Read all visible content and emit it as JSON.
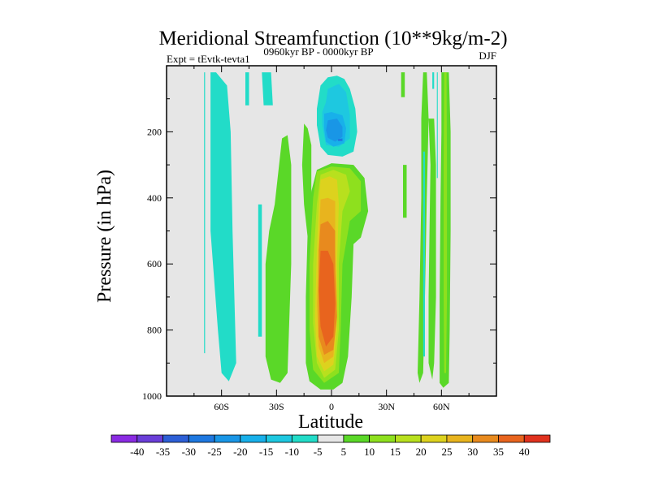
{
  "chart_data": {
    "type": "contour",
    "title": "Meridional Streamfunction (10**9kg/m-2)",
    "subtitle_left": "Expt = tEvtk-tevta1",
    "subtitle_center": "0960kyr BP - 0000kyr BP",
    "subtitle_right": "DJF",
    "xlabel": "Latitude",
    "ylabel": "Pressure (in hPa)",
    "xlim": [
      -90,
      90
    ],
    "ylim": [
      1000,
      0
    ],
    "x_ticks": [
      {
        "value": -60,
        "label": "60S"
      },
      {
        "value": -30,
        "label": "30S"
      },
      {
        "value": 0,
        "label": "0"
      },
      {
        "value": 30,
        "label": "30N"
      },
      {
        "value": 60,
        "label": "60N"
      }
    ],
    "y_ticks": [
      {
        "value": 200,
        "label": "200"
      },
      {
        "value": 400,
        "label": "400"
      },
      {
        "value": 600,
        "label": "600"
      },
      {
        "value": 800,
        "label": "800"
      },
      {
        "value": 1000,
        "label": "1000"
      }
    ],
    "colorbar": {
      "levels": [
        -40,
        -35,
        -30,
        -25,
        -20,
        -15,
        -10,
        -5,
        5,
        10,
        15,
        20,
        25,
        30,
        35,
        40
      ],
      "labels": [
        "-40",
        "-35",
        "-30",
        "-25",
        "-20",
        "-15",
        "-10",
        "-5",
        "5",
        "10",
        "15",
        "20",
        "25",
        "30",
        "35",
        "40"
      ],
      "colors": [
        "#8a2be2",
        "#6a3ed8",
        "#2d5fd6",
        "#1e78e0",
        "#1996e6",
        "#18b0ea",
        "#1ec8e0",
        "#22dcc8",
        "#e6e6e6",
        "#5ad828",
        "#8ee01e",
        "#b8e01e",
        "#ddd21e",
        "#e8b41e",
        "#e88a1e",
        "#e8641e",
        "#e0321e"
      ]
    },
    "regions": [
      {
        "name": "cell-sh-band-1",
        "value": -7.5,
        "polygon": [
          [
            -69.5,
            20
          ],
          [
            -69,
            20
          ],
          [
            -69,
            870
          ],
          [
            -69.5,
            870
          ]
        ]
      },
      {
        "name": "cell-sh-band-2",
        "value": -7.5,
        "polygon": [
          [
            -66,
            20
          ],
          [
            -63,
            20
          ],
          [
            -57,
            60
          ],
          [
            -55,
            200
          ],
          [
            -54,
            500
          ],
          [
            -52,
            900
          ],
          [
            -56,
            955
          ],
          [
            -60,
            930
          ],
          [
            -62,
            800
          ],
          [
            -66,
            500
          ],
          [
            -66,
            200
          ]
        ]
      },
      {
        "name": "cell-sh-band-3",
        "value": -7.5,
        "polygon": [
          [
            -47,
            20
          ],
          [
            -45,
            20
          ],
          [
            -45,
            120
          ],
          [
            -47,
            120
          ]
        ]
      },
      {
        "name": "cell-sh-band-4",
        "value": -7.5,
        "polygon": [
          [
            -38,
            20
          ],
          [
            -33,
            20
          ],
          [
            -32,
            120
          ],
          [
            -37,
            120
          ]
        ]
      },
      {
        "name": "cell-sh-band-5",
        "value": -7.5,
        "polygon": [
          [
            -40,
            420
          ],
          [
            -38,
            420
          ],
          [
            -38,
            820
          ],
          [
            -40,
            820
          ]
        ]
      },
      {
        "name": "cell-sh-band-6",
        "value": 7.5,
        "polygon": [
          [
            -27,
            220
          ],
          [
            -24,
            210
          ],
          [
            -22,
            300
          ],
          [
            -22,
            600
          ],
          [
            -24,
            930
          ],
          [
            -28,
            960
          ],
          [
            -33,
            950
          ],
          [
            -36,
            880
          ],
          [
            -36,
            600
          ],
          [
            -34,
            500
          ],
          [
            -31,
            420
          ]
        ]
      },
      {
        "name": "cell-sh-band-7",
        "value": 7.5,
        "polygon": [
          [
            -15,
            175
          ],
          [
            -13,
            190
          ],
          [
            -11,
            240
          ],
          [
            -11,
            520
          ],
          [
            -13,
            520
          ],
          [
            -15,
            420
          ],
          [
            -16,
            300
          ]
        ]
      },
      {
        "name": "cell-upper-negative",
        "value": -7.5,
        "polygon": [
          [
            -6,
            60
          ],
          [
            -2,
            35
          ],
          [
            3,
            30
          ],
          [
            7,
            40
          ],
          [
            10,
            70
          ],
          [
            13,
            130
          ],
          [
            14,
            200
          ],
          [
            12,
            260
          ],
          [
            6,
            275
          ],
          [
            -2,
            270
          ],
          [
            -6,
            245
          ],
          [
            -8,
            180
          ],
          [
            -8,
            130
          ]
        ]
      },
      {
        "name": "cell-upper-negative-core-1",
        "value": -12.5,
        "polygon": [
          [
            -2,
            70
          ],
          [
            4,
            55
          ],
          [
            8,
            80
          ],
          [
            10,
            150
          ],
          [
            10,
            220
          ],
          [
            4,
            245
          ],
          [
            -3,
            240
          ],
          [
            -5,
            180
          ],
          [
            -5,
            140
          ],
          [
            -3,
            110
          ]
        ]
      },
      {
        "name": "cell-upper-negative-core-2",
        "value": -17.5,
        "polygon": [
          [
            -4,
            145
          ],
          [
            0,
            140
          ],
          [
            6,
            150
          ],
          [
            8,
            190
          ],
          [
            7,
            235
          ],
          [
            1,
            245
          ],
          [
            -3,
            230
          ],
          [
            -4,
            190
          ]
        ]
      },
      {
        "name": "cell-upper-negative-core-3",
        "value": -22.5,
        "polygon": [
          [
            -2,
            165
          ],
          [
            3,
            160
          ],
          [
            6,
            185
          ],
          [
            6,
            215
          ],
          [
            2,
            230
          ],
          [
            -2,
            218
          ],
          [
            -3,
            195
          ]
        ]
      },
      {
        "name": "cell-upper-negative-core-4",
        "value": -27.5,
        "polygon": [
          [
            3.5,
            222
          ],
          [
            6,
            220
          ],
          [
            6,
            228
          ],
          [
            3.5,
            228
          ]
        ]
      },
      {
        "name": "cell-hadley-positive",
        "value": 7.5,
        "polygon": [
          [
            -8,
            315
          ],
          [
            0,
            295
          ],
          [
            12,
            300
          ],
          [
            18,
            340
          ],
          [
            20,
            440
          ],
          [
            16,
            520
          ],
          [
            12,
            540
          ],
          [
            11,
            700
          ],
          [
            9,
            880
          ],
          [
            6,
            960
          ],
          [
            1,
            980
          ],
          [
            -6,
            980
          ],
          [
            -12,
            955
          ],
          [
            -14,
            900
          ],
          [
            -14,
            700
          ],
          [
            -13,
            500
          ],
          [
            -11,
            380
          ]
        ]
      },
      {
        "name": "cell-hadley-core-1",
        "value": 12.5,
        "polygon": [
          [
            -8,
            320
          ],
          [
            0,
            305
          ],
          [
            10,
            310
          ],
          [
            16,
            350
          ],
          [
            16,
            440
          ],
          [
            10,
            470
          ],
          [
            6,
            600
          ],
          [
            5,
            800
          ],
          [
            4,
            930
          ],
          [
            -4,
            960
          ],
          [
            -10,
            920
          ],
          [
            -12,
            800
          ],
          [
            -12,
            600
          ],
          [
            -10,
            400
          ]
        ]
      },
      {
        "name": "cell-hadley-core-2",
        "value": 17.5,
        "polygon": [
          [
            -6,
            330
          ],
          [
            1,
            315
          ],
          [
            8,
            330
          ],
          [
            10,
            380
          ],
          [
            6,
            440
          ],
          [
            4,
            600
          ],
          [
            4,
            800
          ],
          [
            2,
            920
          ],
          [
            -4,
            945
          ],
          [
            -8,
            900
          ],
          [
            -10,
            780
          ],
          [
            -10,
            600
          ],
          [
            -8,
            420
          ]
        ]
      },
      {
        "name": "cell-hadley-core-3",
        "value": 22.5,
        "polygon": [
          [
            -6,
            345
          ],
          [
            -1,
            335
          ],
          [
            3,
            345
          ],
          [
            4,
            420
          ],
          [
            3,
            600
          ],
          [
            3,
            800
          ],
          [
            1,
            905
          ],
          [
            -4,
            925
          ],
          [
            -8,
            880
          ],
          [
            -9,
            760
          ],
          [
            -8,
            560
          ],
          [
            -7,
            430
          ]
        ]
      },
      {
        "name": "cell-hadley-core-4",
        "value": 27.5,
        "polygon": [
          [
            -6,
            405
          ],
          [
            -2,
            400
          ],
          [
            2,
            410
          ],
          [
            2,
            560
          ],
          [
            3,
            720
          ],
          [
            1,
            880
          ],
          [
            -4,
            900
          ],
          [
            -7,
            850
          ],
          [
            -8,
            720
          ],
          [
            -7,
            560
          ]
        ]
      },
      {
        "name": "cell-hadley-core-5",
        "value": 32.5,
        "polygon": [
          [
            -6,
            480
          ],
          [
            -2,
            470
          ],
          [
            2,
            500
          ],
          [
            2,
            620
          ],
          [
            3,
            760
          ],
          [
            1,
            860
          ],
          [
            -4,
            875
          ],
          [
            -7,
            820
          ],
          [
            -7,
            680
          ],
          [
            -7,
            560
          ]
        ]
      },
      {
        "name": "cell-hadley-core-6",
        "value": 37.5,
        "polygon": [
          [
            -6,
            560
          ],
          [
            -2,
            560
          ],
          [
            1,
            600
          ],
          [
            2,
            720
          ],
          [
            1,
            820
          ],
          [
            -3,
            850
          ],
          [
            -6,
            790
          ],
          [
            -7,
            680
          ]
        ]
      },
      {
        "name": "cell-nh-band-1",
        "value": 7.5,
        "polygon": [
          [
            38,
            20
          ],
          [
            40,
            20
          ],
          [
            40,
            95
          ],
          [
            38,
            95
          ]
        ]
      },
      {
        "name": "cell-nh-band-2",
        "value": 7.5,
        "polygon": [
          [
            39,
            300
          ],
          [
            41,
            300
          ],
          [
            41,
            460
          ],
          [
            39,
            460
          ]
        ]
      },
      {
        "name": "cell-nh-band-3",
        "value": 7.5,
        "polygon": [
          [
            50,
            20
          ],
          [
            52,
            20
          ],
          [
            53,
            160
          ],
          [
            52,
            400
          ],
          [
            51,
            700
          ],
          [
            50,
            930
          ],
          [
            48,
            960
          ],
          [
            47,
            930
          ],
          [
            48,
            700
          ],
          [
            49,
            400
          ],
          [
            49,
            160
          ]
        ]
      },
      {
        "name": "cell-nh-band-4",
        "value": -7.5,
        "polygon": [
          [
            55,
            20
          ],
          [
            56,
            20
          ],
          [
            56,
            70
          ],
          [
            55,
            70
          ]
        ]
      },
      {
        "name": "cell-nh-band-5",
        "value": -7.5,
        "polygon": [
          [
            50,
            260
          ],
          [
            51,
            260
          ],
          [
            51,
            880
          ],
          [
            50,
            880
          ]
        ]
      },
      {
        "name": "cell-nh-band-6",
        "value": 7.5,
        "polygon": [
          [
            53,
            160
          ],
          [
            56,
            160
          ],
          [
            57,
            300
          ],
          [
            57,
            700
          ],
          [
            56,
            900
          ],
          [
            55,
            950
          ],
          [
            53,
            900
          ],
          [
            53,
            700
          ],
          [
            54,
            300
          ]
        ]
      },
      {
        "name": "cell-nh-band-7",
        "value": -7.5,
        "polygon": [
          [
            57.5,
            20
          ],
          [
            58,
            20
          ],
          [
            58,
            340
          ],
          [
            57.5,
            340
          ]
        ]
      },
      {
        "name": "cell-nh-band-8",
        "value": 7.5,
        "polygon": [
          [
            60,
            20
          ],
          [
            64,
            20
          ],
          [
            65,
            200
          ],
          [
            65,
            500
          ],
          [
            64.5,
            800
          ],
          [
            64,
            960
          ],
          [
            61,
            975
          ],
          [
            59,
            960
          ],
          [
            59,
            700
          ],
          [
            59.5,
            400
          ],
          [
            60,
            200
          ]
        ]
      },
      {
        "name": "cell-nh-band-9",
        "value": 12.5,
        "polygon": [
          [
            61.5,
            20
          ],
          [
            62.8,
            20
          ],
          [
            63,
            300
          ],
          [
            63,
            700
          ],
          [
            62.5,
            930
          ],
          [
            61.5,
            930
          ],
          [
            61.2,
            700
          ],
          [
            61.2,
            300
          ]
        ]
      }
    ]
  }
}
